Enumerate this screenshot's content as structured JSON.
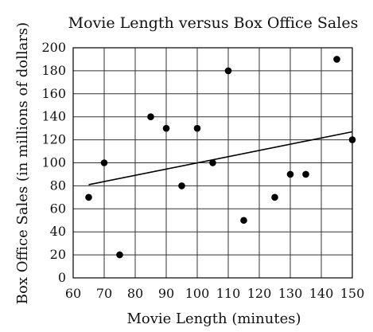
{
  "chart_data": {
    "type": "scatter",
    "title": "Movie Length versus Box Office Sales",
    "xlabel": "Movie Length (minutes)",
    "ylabel": "Box Office Sales (in millions of dollars)",
    "xlim": [
      60,
      150
    ],
    "ylim": [
      0,
      200
    ],
    "xticks": [
      60,
      70,
      80,
      90,
      100,
      110,
      120,
      130,
      140,
      150
    ],
    "yticks": [
      0,
      20,
      40,
      60,
      80,
      100,
      120,
      140,
      160,
      180,
      200
    ],
    "grid": true,
    "points": [
      {
        "x": 65,
        "y": 70
      },
      {
        "x": 70,
        "y": 100
      },
      {
        "x": 75,
        "y": 20
      },
      {
        "x": 85,
        "y": 140
      },
      {
        "x": 90,
        "y": 130
      },
      {
        "x": 95,
        "y": 80
      },
      {
        "x": 100,
        "y": 130
      },
      {
        "x": 105,
        "y": 100
      },
      {
        "x": 110,
        "y": 180
      },
      {
        "x": 115,
        "y": 50
      },
      {
        "x": 125,
        "y": 70
      },
      {
        "x": 130,
        "y": 90
      },
      {
        "x": 135,
        "y": 90
      },
      {
        "x": 145,
        "y": 190
      },
      {
        "x": 150,
        "y": 120
      }
    ],
    "trend_line": {
      "x": [
        65,
        150
      ],
      "y": [
        81,
        127
      ]
    }
  }
}
